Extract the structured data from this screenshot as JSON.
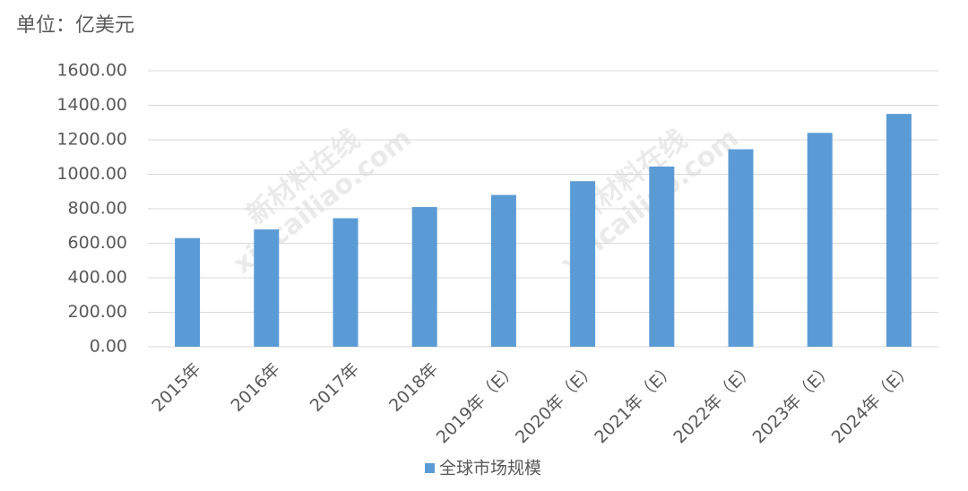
{
  "chart_data": {
    "type": "bar",
    "subtitle": "单位：亿美元",
    "watermark": [
      "新材料在线",
      "xincailiao.com"
    ],
    "categories": [
      "2015年",
      "2016年",
      "2017年",
      "2018年",
      "2019年（E）",
      "2020年（E）",
      "2021年（E）",
      "2022年（E）",
      "2023年（E）",
      "2024年（E）"
    ],
    "series": [
      {
        "name": "全球市场规模",
        "color": "#5b9bd5",
        "values": [
          630,
          680,
          745,
          810,
          880,
          960,
          1045,
          1145,
          1240,
          1350
        ]
      }
    ],
    "ylim": [
      0,
      1600
    ],
    "yticks": [
      {
        "value": 0,
        "label": "0.00"
      },
      {
        "value": 200,
        "label": "200.00"
      },
      {
        "value": 400,
        "label": "400.00"
      },
      {
        "value": 600,
        "label": "600.00"
      },
      {
        "value": 800,
        "label": "800.00"
      },
      {
        "value": 1000,
        "label": "1000.00"
      },
      {
        "value": 1200,
        "label": "1200.00"
      },
      {
        "value": 1400,
        "label": "1400.00"
      },
      {
        "value": 1600,
        "label": "1600.00"
      }
    ],
    "grid": true,
    "legend": "bottom"
  }
}
